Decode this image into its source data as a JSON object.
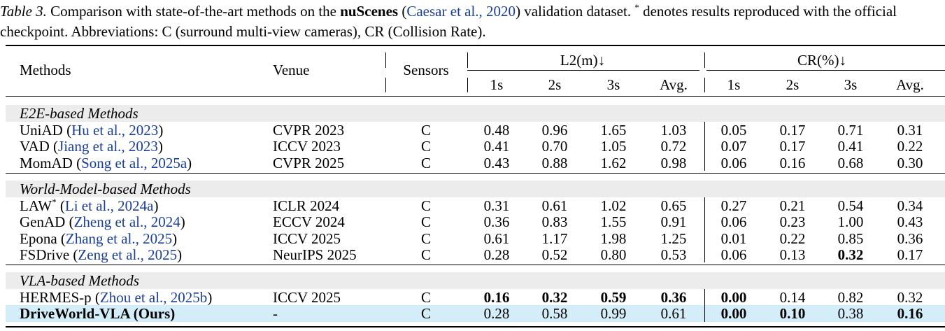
{
  "caption": {
    "label": "Table 3.",
    "text_1": " Comparison with state-of-the-art methods on the ",
    "dataset": "nuScenes",
    "text_2": " (",
    "cite": "Caesar et al., 2020",
    "text_3": ") validation dataset. ",
    "mark": "*",
    "text_4": " denotes results reproduced with the official checkpoint. Abbreviations: C (surround multi-view cameras), CR (Collision Rate)."
  },
  "table": {
    "header": {
      "methods": "Methods",
      "venue": "Venue",
      "sensors": "Sensors",
      "l2": "L2(m)↓",
      "cr": "CR(%)↓",
      "l2_cols": [
        "1s",
        "2s",
        "3s",
        "Avg."
      ],
      "cr_cols": [
        "1s",
        "2s",
        "3s",
        "Avg."
      ]
    },
    "groups": [
      {
        "title": "E2E-based Methods",
        "rows": [
          {
            "method": [
              {
                "text": "UniAD ("
              },
              {
                "text": "Hu et al., 2023",
                "link": true
              },
              {
                "text": ")"
              }
            ],
            "venue": "CVPR 2023",
            "sensors": "C",
            "values": [
              "0.48",
              "0.96",
              "1.65",
              "1.03",
              "0.05",
              "0.17",
              "0.71",
              "0.31"
            ],
            "bold": []
          },
          {
            "method": [
              {
                "text": "VAD ("
              },
              {
                "text": "Jiang et al., 2023",
                "link": true
              },
              {
                "text": ")"
              }
            ],
            "venue": "ICCV 2023",
            "sensors": "C",
            "values": [
              "0.41",
              "0.70",
              "1.05",
              "0.72",
              "0.07",
              "0.17",
              "0.41",
              "0.22"
            ],
            "bold": []
          },
          {
            "method": [
              {
                "text": "MomAD ("
              },
              {
                "text": "Song et al., 2025a",
                "link": true
              },
              {
                "text": ")"
              }
            ],
            "venue": "CVPR 2025",
            "sensors": "C",
            "values": [
              "0.43",
              "0.88",
              "1.62",
              "0.98",
              "0.06",
              "0.16",
              "0.68",
              "0.30"
            ],
            "bold": []
          }
        ]
      },
      {
        "title": "World-Model-based Methods",
        "rows": [
          {
            "method": [
              {
                "text": "LAW"
              },
              {
                "text": "*",
                "sup": true
              },
              {
                "text": " ("
              },
              {
                "text": "Li et al., 2024a",
                "link": true
              },
              {
                "text": ")"
              }
            ],
            "venue": "ICLR 2024",
            "sensors": "C",
            "values": [
              "0.31",
              "0.61",
              "1.02",
              "0.65",
              "0.27",
              "0.21",
              "0.54",
              "0.34"
            ],
            "bold": []
          },
          {
            "method": [
              {
                "text": "GenAD ("
              },
              {
                "text": "Zheng et al., 2024",
                "link": true
              },
              {
                "text": ")"
              }
            ],
            "venue": "ECCV 2024",
            "sensors": "C",
            "values": [
              "0.36",
              "0.83",
              "1.55",
              "0.91",
              "0.06",
              "0.23",
              "1.00",
              "0.43"
            ],
            "bold": []
          },
          {
            "method": [
              {
                "text": "Epona ("
              },
              {
                "text": "Zhang et al., 2025",
                "link": true
              },
              {
                "text": ")"
              }
            ],
            "venue": "ICCV 2025",
            "sensors": "C",
            "values": [
              "0.61",
              "1.17",
              "1.98",
              "1.25",
              "0.01",
              "0.22",
              "0.85",
              "0.36"
            ],
            "bold": []
          },
          {
            "method": [
              {
                "text": "FSDrive ("
              },
              {
                "text": "Zeng et al., 2025",
                "link": true
              },
              {
                "text": ")"
              }
            ],
            "venue": "NeurIPS 2025",
            "sensors": "C",
            "values": [
              "0.28",
              "0.52",
              "0.80",
              "0.53",
              "0.06",
              "0.13",
              "0.32",
              "0.17"
            ],
            "bold": [
              6
            ]
          }
        ]
      },
      {
        "title": "VLA-based Methods",
        "rows": [
          {
            "method": [
              {
                "text": "HERMES-p ("
              },
              {
                "text": "Zhou et al., 2025b",
                "link": true
              },
              {
                "text": ")"
              }
            ],
            "venue": "ICCV 2025",
            "sensors": "C",
            "values": [
              "0.16",
              "0.32",
              "0.59",
              "0.36",
              "0.00",
              "0.14",
              "0.82",
              "0.32"
            ],
            "bold": [
              0,
              1,
              2,
              3,
              4
            ]
          },
          {
            "method": [
              {
                "text": "DriveWorld-VLA (Ours)",
                "bold": true
              }
            ],
            "venue": "-",
            "sensors": "C",
            "values": [
              "0.28",
              "0.58",
              "0.99",
              "0.61",
              "0.00",
              "0.10",
              "0.38",
              "0.16"
            ],
            "bold": [
              4,
              5,
              7
            ],
            "highlight": true
          }
        ]
      }
    ]
  }
}
